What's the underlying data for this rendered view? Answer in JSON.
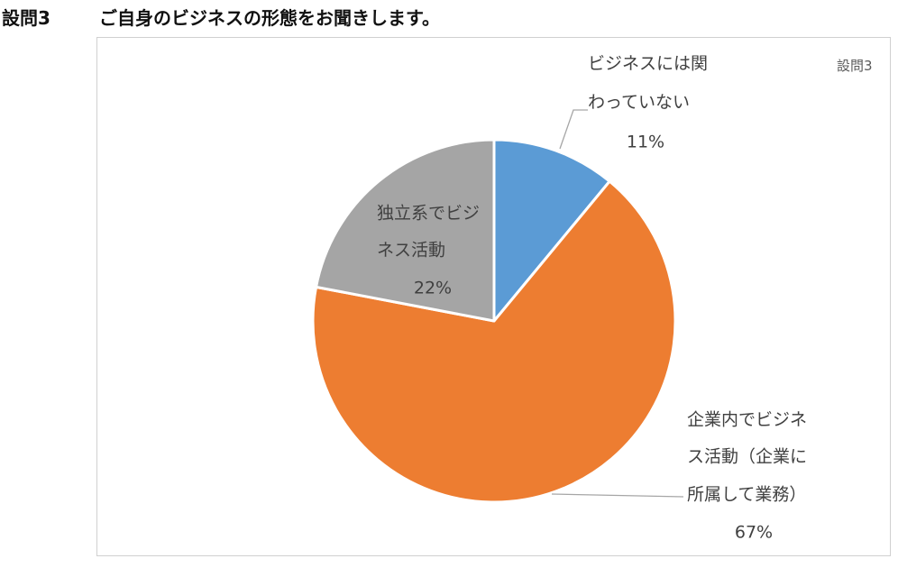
{
  "heading": {
    "question_number": "設問3",
    "question_text": "ご自身のビジネスの形態をお聞きします。"
  },
  "chart_data": {
    "type": "pie",
    "title": "設問3",
    "slices": [
      {
        "label_lines": [
          "ビジネスには関",
          "わっていない"
        ],
        "value": 11,
        "percent_label": "11%",
        "color": "#5b9bd5"
      },
      {
        "label_lines": [
          "企業内でビジネ",
          "ス活動（企業に",
          "所属して業務）"
        ],
        "value": 67,
        "percent_label": "67%",
        "color": "#ed7d31"
      },
      {
        "label_lines": [
          "独立系でビジ",
          "ネス活動"
        ],
        "value": 22,
        "percent_label": "22%",
        "color": "#a5a5a5"
      }
    ],
    "legend": "none"
  }
}
